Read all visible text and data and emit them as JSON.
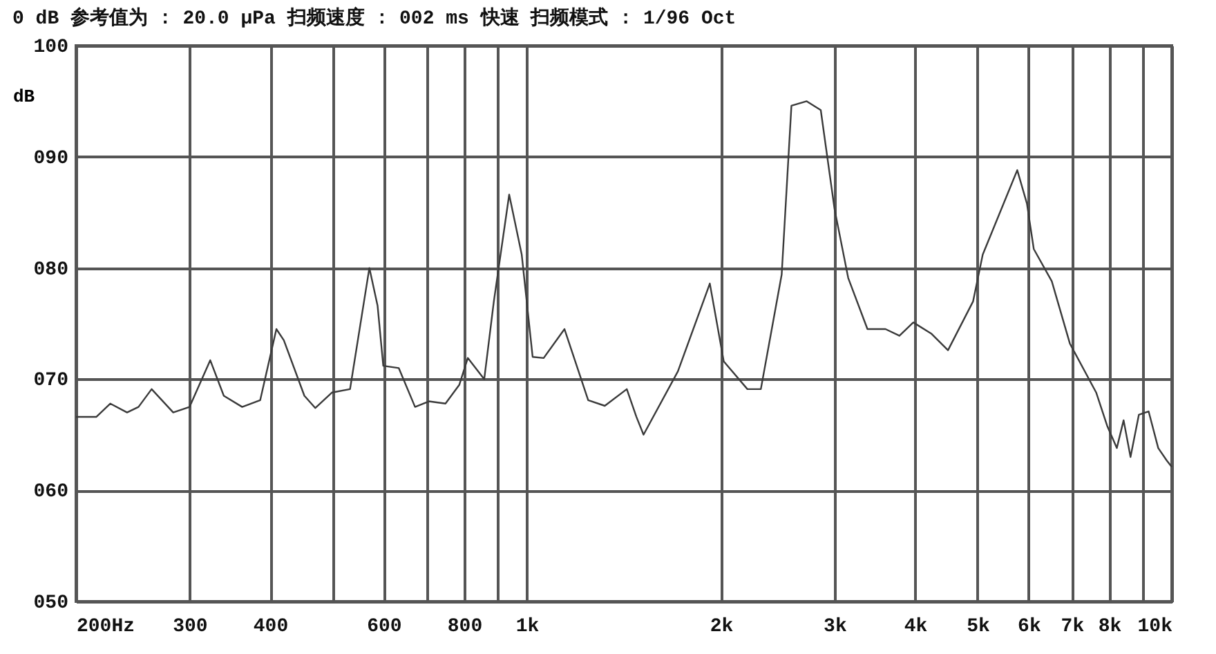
{
  "chart_data": {
    "type": "line",
    "title": "0 dB 参考值为 : 20.0 μPa     扫频速度 : 002 ms 快速  扫频模式 : 1/96  Oct",
    "ylabel": "dB",
    "x": [
      200,
      215,
      226,
      240,
      250,
      262,
      283,
      300,
      323,
      339,
      362,
      386,
      409,
      420,
      452,
      470,
      499,
      532,
      570,
      587,
      599,
      633,
      671,
      705,
      748,
      786,
      810,
      859,
      889,
      939,
      982,
      1021,
      1062,
      1144,
      1245,
      1321,
      1429,
      1479,
      1517,
      1715,
      1922,
      2020,
      2198,
      2306,
      2484,
      2572,
      2716,
      2856,
      3000,
      3150,
      3374,
      3598,
      3782,
      3974,
      4236,
      4498,
      4920,
      5092,
      5760,
      5962,
      6110,
      6516,
      6950,
      7634,
      7940,
      8218,
      8420,
      8630,
      8892,
      9206,
      9528,
      9816,
      10000
    ],
    "series": [
      {
        "color": "#3a3a3a",
        "values": [
          66.6,
          66.6,
          67.8,
          67.0,
          67.5,
          69.1,
          67.0,
          67.5,
          71.7,
          68.5,
          67.5,
          68.1,
          74.5,
          73.5,
          68.5,
          67.4,
          68.8,
          69.1,
          80.0,
          76.6,
          71.2,
          71.0,
          67.5,
          68.0,
          67.8,
          69.5,
          71.9,
          70.0,
          77.0,
          86.6,
          81.2,
          72.0,
          71.9,
          74.5,
          68.1,
          67.6,
          69.1,
          66.6,
          65.0,
          70.7,
          78.6,
          71.6,
          69.1,
          69.1,
          79.4,
          94.6,
          95.0,
          94.2,
          85.3,
          79.1,
          74.5,
          74.5,
          73.9,
          75.1,
          74.1,
          72.6,
          77.0,
          81.2,
          88.8,
          85.8,
          81.7,
          78.8,
          73.2,
          68.8,
          65.8,
          63.8,
          66.3,
          63.0,
          66.8,
          67.1,
          63.8,
          62.7,
          62.1
        ]
      }
    ],
    "log": "x",
    "grid": true,
    "legend": false,
    "xlim": [
      200,
      10000
    ],
    "xticks": [
      {
        "value": 200,
        "label": "200Hz"
      },
      300,
      400,
      {
        "value": 500,
        "label": null
      },
      600,
      {
        "value": 700,
        "label": null
      },
      800,
      {
        "value": 900,
        "label": null
      },
      {
        "value": 1000,
        "label": "1k"
      },
      {
        "value": 2000,
        "label": "2k"
      },
      {
        "value": 3000,
        "label": "3k"
      },
      {
        "value": 4000,
        "label": "4k"
      },
      {
        "value": 5000,
        "label": "5k"
      },
      {
        "value": 6000,
        "label": "6k"
      },
      {
        "value": 7000,
        "label": "7k"
      },
      {
        "value": 8000,
        "label": "8k"
      },
      {
        "value": 9000,
        "label": null
      },
      {
        "value": 10000,
        "label": "10k"
      }
    ],
    "ylim": [
      50,
      100
    ],
    "yticks": [
      {
        "value": 50,
        "label": "050"
      },
      {
        "value": 60,
        "label": "060"
      },
      {
        "value": 70,
        "label": "070"
      },
      {
        "value": 80,
        "label": "080"
      },
      {
        "value": 90,
        "label": "090"
      },
      100
    ]
  }
}
